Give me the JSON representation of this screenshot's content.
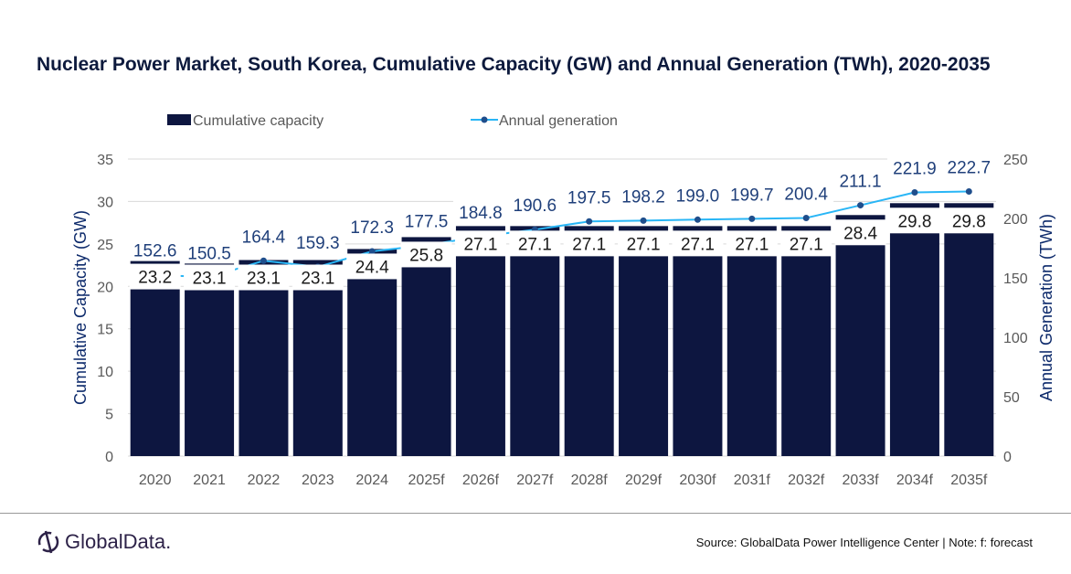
{
  "chart_data": {
    "type": "bar+line",
    "title": "Nuclear Power Market, South Korea, Cumulative Capacity (GW) and Annual Generation (TWh), 2020-2035",
    "categories": [
      "2020",
      "2021",
      "2022",
      "2023",
      "2024",
      "2025f",
      "2026f",
      "2027f",
      "2028f",
      "2029f",
      "2030f",
      "2031f",
      "2032f",
      "2033f",
      "2034f",
      "2035f"
    ],
    "series": [
      {
        "name": "Cumulative capacity",
        "type": "bar",
        "axis": "left",
        "color": "#0d1640",
        "values": [
          23.2,
          23.1,
          23.1,
          23.1,
          24.4,
          25.8,
          27.1,
          27.1,
          27.1,
          27.1,
          27.1,
          27.1,
          27.1,
          28.4,
          29.8,
          29.8
        ]
      },
      {
        "name": "Annual generation",
        "type": "line",
        "axis": "right",
        "color": "#29b6f6",
        "marker_color": "#1f4e8c",
        "values": [
          152.6,
          150.5,
          164.4,
          159.3,
          172.3,
          177.5,
          184.8,
          190.6,
          197.5,
          198.2,
          199.0,
          199.7,
          200.4,
          211.1,
          221.9,
          222.7
        ]
      }
    ],
    "ylabel": "Cumulative Capacity (GW)",
    "ylim": [
      0,
      35
    ],
    "yticks": [
      0,
      5,
      10,
      15,
      20,
      25,
      30,
      35
    ],
    "y2label": "Annual Generation (TWh)",
    "y2lim": [
      0,
      250
    ],
    "y2ticks": [
      0,
      50,
      100,
      150,
      200,
      250
    ],
    "grid": true,
    "legend": "top"
  },
  "footer": {
    "source": "Source: GlobalData Power Intelligence Center | Note: f: forecast",
    "logo": "GlobalData."
  }
}
